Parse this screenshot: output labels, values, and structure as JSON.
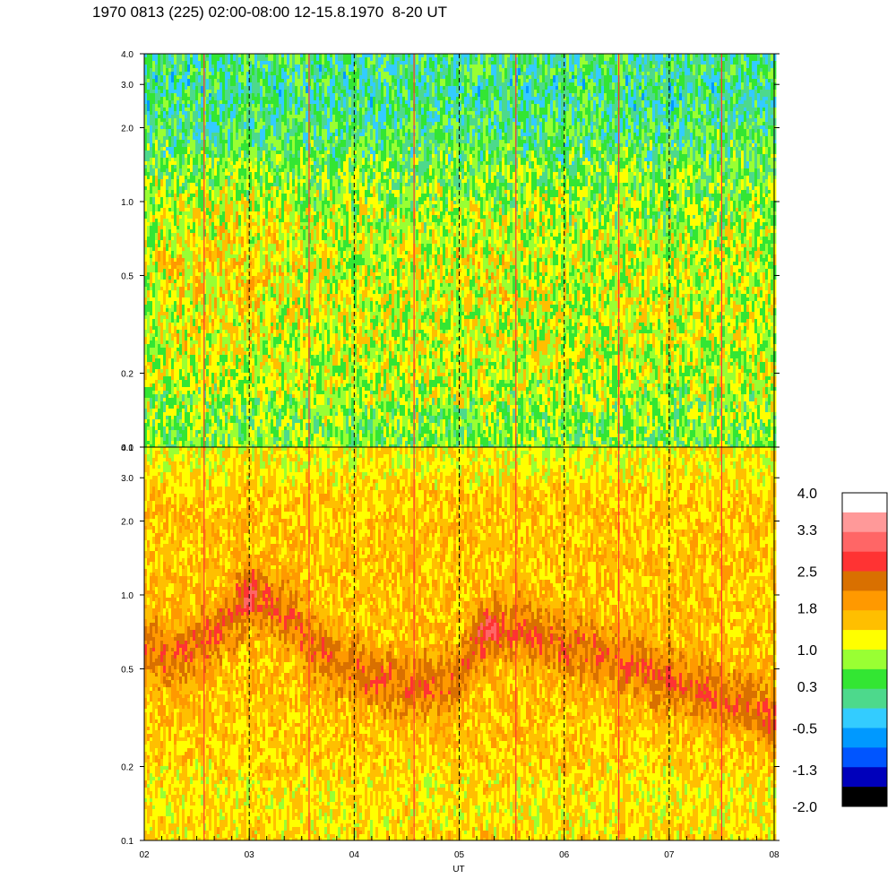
{
  "header": {
    "title": "1970 0813 (225) 02:00-08:00 12-15.8.1970  8-20 UT"
  },
  "chart_data": {
    "type": "heatmap",
    "xlabel": "UT",
    "x_ticks": [
      "02",
      "03",
      "04",
      "05",
      "06",
      "07",
      "08"
    ],
    "x_range": [
      2,
      8
    ],
    "y_scale": "log",
    "y_range": [
      0.1,
      4.0
    ],
    "y_ticks": [
      "0.1",
      "0.2",
      "0.5",
      "1.0",
      "2.0",
      "3.0",
      "4.0"
    ],
    "dashed_vertical_lines_at": [
      3,
      4,
      5,
      6,
      7
    ],
    "panels": [
      {
        "name": "upper",
        "dominant_levels": "green to yellow (about 0.3 to 1.0)",
        "features": [
          {
            "ut": [
              2.3,
              3.4
            ],
            "freq": [
              0.4,
              0.9
            ],
            "level": 1.4
          },
          {
            "ut": [
              4.9,
              5.6
            ],
            "freq": [
              0.4,
              0.7
            ],
            "level": 1.2
          },
          {
            "ut": [
              2.0,
              8.0
            ],
            "freq": [
              0.1,
              0.15
            ],
            "level": 0.3
          }
        ]
      },
      {
        "name": "lower",
        "dominant_levels": "yellow to orange (about 1.0 to 1.8)",
        "ridge": {
          "ut": [
            2.0,
            2.25,
            2.5,
            2.75,
            3.0,
            3.25,
            3.5,
            3.75,
            4.0,
            4.25,
            4.5,
            4.75,
            5.0,
            5.25,
            5.5,
            5.75,
            6.0,
            6.25,
            6.5,
            6.75,
            7.0,
            7.25,
            7.5,
            7.75,
            8.0
          ],
          "freq": [
            0.6,
            0.55,
            0.6,
            0.75,
            0.95,
            0.9,
            0.7,
            0.55,
            0.5,
            0.45,
            0.42,
            0.42,
            0.48,
            0.7,
            0.72,
            0.68,
            0.62,
            0.6,
            0.55,
            0.5,
            0.45,
            0.42,
            0.38,
            0.35,
            0.3
          ],
          "level": 2.2
        },
        "peaks": [
          {
            "ut": 3.0,
            "freq": 1.05,
            "level": 2.8
          },
          {
            "ut": 5.25,
            "freq": 0.75,
            "level": 2.8
          }
        ]
      }
    ],
    "colorbar": {
      "labels": [
        "4.0",
        "3.3",
        "2.5",
        "1.8",
        "1.0",
        "0.3",
        "-0.5",
        "-1.3",
        "-2.0"
      ],
      "colors": [
        "#ffffff",
        "#ff9999",
        "#ff6666",
        "#ff3333",
        "#d97000",
        "#ff9900",
        "#ffbf00",
        "#ffff00",
        "#99ff33",
        "#33e633",
        "#4dd98c",
        "#33ccff",
        "#0099ff",
        "#0055ff",
        "#0000bb",
        "#000000"
      ]
    }
  }
}
